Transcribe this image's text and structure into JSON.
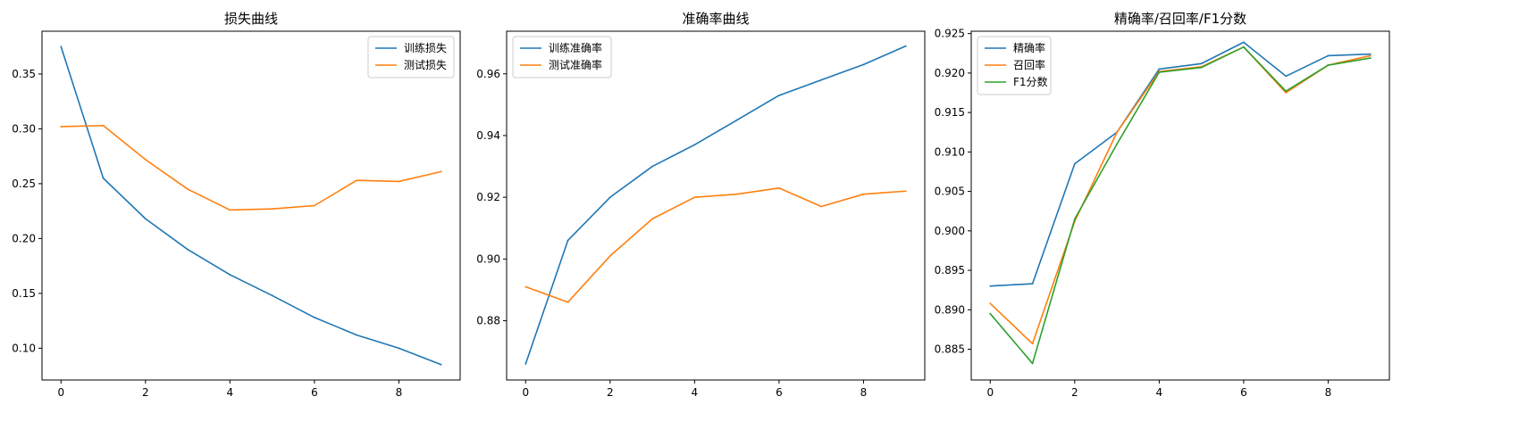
{
  "chart_data": [
    {
      "type": "line",
      "title": "损失曲线",
      "xlabel": "",
      "ylabel": "",
      "x": [
        0,
        1,
        2,
        3,
        4,
        5,
        6,
        7,
        8,
        9
      ],
      "xlim": [
        -0.45,
        9.45
      ],
      "ylim": [
        0.071,
        0.389
      ],
      "xticks": [
        0,
        2,
        4,
        6,
        8
      ],
      "yticks": [
        0.1,
        0.15,
        0.2,
        0.25,
        0.3,
        0.35
      ],
      "ytick_decimals": 2,
      "legend_position": "upper right",
      "grid": false,
      "series": [
        {
          "name": "训练损失",
          "color": "#1f77b4",
          "values": [
            0.375,
            0.255,
            0.218,
            0.19,
            0.167,
            0.148,
            0.128,
            0.112,
            0.1,
            0.085
          ]
        },
        {
          "name": "测试损失",
          "color": "#ff7f0e",
          "values": [
            0.302,
            0.303,
            0.272,
            0.245,
            0.226,
            0.227,
            0.23,
            0.253,
            0.252,
            0.261
          ]
        }
      ]
    },
    {
      "type": "line",
      "title": "准确率曲线",
      "xlabel": "",
      "ylabel": "",
      "x": [
        0,
        1,
        2,
        3,
        4,
        5,
        6,
        7,
        8,
        9
      ],
      "xlim": [
        -0.45,
        9.45
      ],
      "ylim": [
        0.8608,
        0.9738
      ],
      "xticks": [
        0,
        2,
        4,
        6,
        8
      ],
      "yticks": [
        0.88,
        0.9,
        0.92,
        0.94,
        0.96
      ],
      "ytick_decimals": 2,
      "legend_position": "upper left",
      "grid": false,
      "series": [
        {
          "name": "训练准确率",
          "color": "#1f77b4",
          "values": [
            0.866,
            0.906,
            0.92,
            0.93,
            0.937,
            0.945,
            0.953,
            0.958,
            0.963,
            0.969
          ]
        },
        {
          "name": "测试准确率",
          "color": "#ff7f0e",
          "values": [
            0.891,
            0.886,
            0.901,
            0.913,
            0.92,
            0.921,
            0.923,
            0.917,
            0.921,
            0.922
          ]
        }
      ]
    },
    {
      "type": "line",
      "title": "精确率/召回率/F1分数",
      "xlabel": "",
      "ylabel": "",
      "x": [
        0,
        1,
        2,
        3,
        4,
        5,
        6,
        7,
        8,
        9
      ],
      "xlim": [
        -0.45,
        9.45
      ],
      "ylim": [
        0.8811,
        0.9253
      ],
      "xticks": [
        0,
        2,
        4,
        6,
        8
      ],
      "yticks": [
        0.885,
        0.89,
        0.895,
        0.9,
        0.905,
        0.91,
        0.915,
        0.92,
        0.925
      ],
      "ytick_decimals": 3,
      "legend_position": "upper left",
      "grid": false,
      "series": [
        {
          "name": "精确率",
          "color": "#1f77b4",
          "values": [
            0.893,
            0.8933,
            0.9085,
            0.9125,
            0.9205,
            0.9212,
            0.9239,
            0.9196,
            0.9222,
            0.9224
          ]
        },
        {
          "name": "召回率",
          "color": "#ff7f0e",
          "values": [
            0.8908,
            0.8857,
            0.9012,
            0.9125,
            0.9202,
            0.9208,
            0.9233,
            0.9175,
            0.921,
            0.9222
          ]
        },
        {
          "name": "F1分数",
          "color": "#2ca02c",
          "values": [
            0.8895,
            0.8832,
            0.9015,
            0.911,
            0.9201,
            0.9207,
            0.9233,
            0.9177,
            0.921,
            0.9219
          ]
        }
      ]
    }
  ]
}
